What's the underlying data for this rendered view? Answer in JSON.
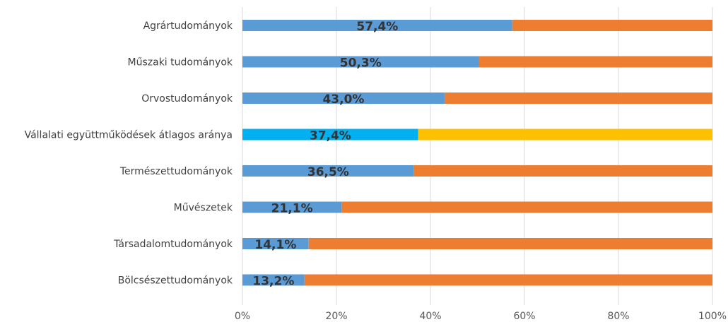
{
  "chart_data": {
    "type": "bar",
    "orientation": "horizontal",
    "stacked": "100%",
    "title": "",
    "xlabel": "",
    "ylabel": "",
    "xlim": [
      0,
      100
    ],
    "grid": true,
    "legend": "none",
    "categories": [
      "Agrártudományok",
      "Műszaki tudományok",
      "Orvostudományok",
      "Vállalati együttműködések átlagos aránya",
      "Természettudományok",
      "Művészetek",
      "Társadalomtudományok",
      "Bölcsészettudományok"
    ],
    "series": [
      {
        "values": [
          57.4,
          50.3,
          43.0,
          37.4,
          36.5,
          21.1,
          14.1,
          13.2
        ],
        "color": "#5b9bd5",
        "highlight_color": "#00b0f0"
      },
      {
        "values": [
          42.6,
          49.7,
          57.0,
          62.6,
          63.5,
          78.9,
          85.9,
          86.8
        ],
        "color": "#ed7d31",
        "highlight_color": "#ffc000"
      }
    ],
    "highlight_index": 3,
    "data_labels": [
      "57,4%",
      "50,3%",
      "43,0%",
      "37,4%",
      "36,5%",
      "21,1%",
      "14,1%",
      "13,2%"
    ],
    "x_ticks": [
      0,
      20,
      40,
      60,
      80,
      100
    ],
    "x_tick_labels": [
      "0%",
      "20%",
      "40%",
      "60%",
      "80%",
      "100%"
    ]
  }
}
